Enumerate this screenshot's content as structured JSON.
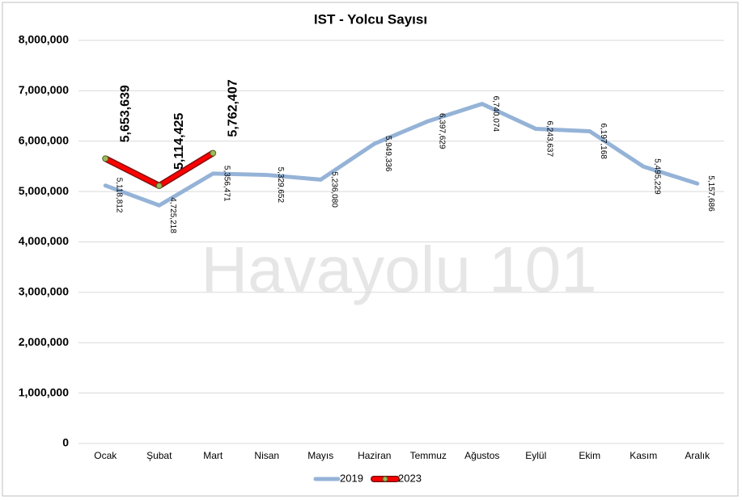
{
  "chart_data": {
    "type": "line",
    "title": "IST - Yolcu Sayısı",
    "annotation": "Havayolu 101",
    "categories": [
      "Ocak",
      "Şubat",
      "Mart",
      "Nisan",
      "Mayıs",
      "Haziran",
      "Temmuz",
      "Ağustos",
      "Eylül",
      "Ekim",
      "Kasım",
      "Aralık"
    ],
    "series": [
      {
        "name": "2019",
        "color": "#95b3d7",
        "values": [
          5118812,
          4725218,
          5356471,
          5329652,
          5236080,
          5949336,
          6397629,
          6740074,
          6243637,
          6197168,
          5495229,
          5157686
        ],
        "value_labels": [
          "5,118,812",
          "4,725,218",
          "5,356,471",
          "5,329,652",
          "5,236,080",
          "5,949,336",
          "6,397,629",
          "6,740,074",
          "6,243,637",
          "6,197,168",
          "5,495,229",
          "5,157,686"
        ]
      },
      {
        "name": "2023",
        "color": "#ff0000",
        "values": [
          5653639,
          5114425,
          5762407,
          null,
          null,
          null,
          null,
          null,
          null,
          null,
          null,
          null
        ],
        "value_labels": [
          "5,653,639",
          "5,114,425",
          "5,762,407",
          null,
          null,
          null,
          null,
          null,
          null,
          null,
          null,
          null
        ]
      }
    ],
    "ylim": [
      0,
      8000000
    ],
    "yticks": [
      0,
      {
        "value": 1000000,
        "label": "1,000,000"
      },
      {
        "value": 2000000,
        "label": "2,000,000"
      },
      {
        "value": 3000000,
        "label": "3,000,000"
      },
      {
        "value": 4000000,
        "label": "4,000,000"
      },
      {
        "value": 5000000,
        "label": "5,000,000"
      },
      {
        "value": 6000000,
        "label": "6,000,000"
      },
      {
        "value": 7000000,
        "label": "7,000,000"
      },
      {
        "value": 8000000,
        "label": "8,000,000"
      }
    ],
    "grid": true,
    "legend": "bottom"
  }
}
